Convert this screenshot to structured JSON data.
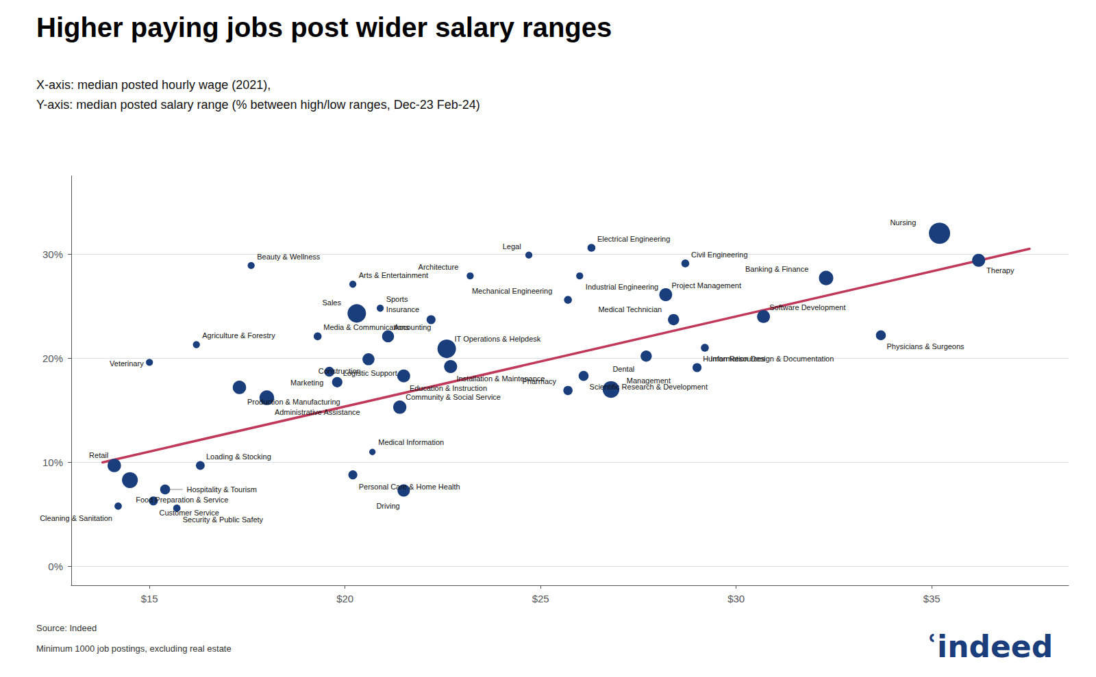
{
  "chart_data": {
    "type": "scatter",
    "title": "Higher paying jobs post wider salary ranges",
    "subtitle": "X-axis: median posted hourly wage (2021),\nY-axis: median posted salary range (% between high/low ranges, Dec-23 Feb-24)",
    "source": "Source: Indeed\nMinimum 1000 job postings, excluding real estate",
    "logo": "ʿindeed",
    "color": "#1a3d7c",
    "point_labels": [
      "Retail",
      "Food Preparation & Service",
      "Cleaning & Sanitation",
      "Customer Service",
      "Security & Public Safety",
      "Hospitality & Tourism",
      "Loading & Stocking",
      "Veterinary",
      "Agriculture & Forestry",
      "Production & Manufacturing",
      "Administrative Assistance",
      "Beauty & Wellness",
      "Media & Communications",
      "Marketing",
      "Logistic Support",
      "Arts & Entertainment",
      "Sales",
      "Sports",
      "Construction",
      "Accounting",
      "Education & Instruction",
      "Personal Care & Home Health",
      "Medical Information",
      "Community & Social Service",
      "Driving",
      "Insurance",
      "IT Operations & Helpdesk",
      "Installation & Maintenance",
      "Architecture",
      "Legal",
      "Mechanical Engineering",
      "Electrical Engineering",
      "Industrial Engineering",
      "Pharmacy",
      "Scientific Research & Development",
      "Management",
      "Civil Engineering",
      "Project Management",
      "Medical Technician",
      "Dental",
      "Information Design & Documentation",
      "Human Resources",
      "Software Development",
      "Banking & Finance",
      "Physicians & Surgeons",
      "Nursing",
      "Therapy"
    ],
    "x": [
      14.1,
      14.5,
      14.2,
      15.1,
      15.7,
      15.4,
      16.3,
      15.0,
      16.2,
      17.3,
      18.0,
      17.6,
      19.3,
      19.6,
      19.8,
      20.2,
      20.3,
      20.9,
      20.6,
      21.1,
      21.5,
      20.2,
      20.7,
      21.4,
      21.5,
      22.2,
      22.6,
      22.7,
      23.2,
      24.7,
      25.7,
      26.3,
      26.0,
      25.7,
      26.1,
      26.8,
      28.7,
      28.2,
      28.4,
      27.7,
      29.2,
      29.0,
      30.7,
      32.3,
      33.7,
      35.2,
      36.2
    ],
    "values": [
      0.097,
      0.083,
      0.058,
      0.063,
      0.056,
      0.074,
      0.097,
      0.196,
      0.213,
      0.172,
      0.162,
      0.289,
      0.221,
      0.187,
      0.177,
      0.271,
      0.243,
      0.248,
      0.199,
      0.221,
      0.183,
      0.088,
      0.11,
      0.153,
      0.073,
      0.237,
      0.209,
      0.192,
      0.279,
      0.299,
      0.256,
      0.306,
      0.279,
      0.169,
      0.183,
      0.17,
      0.291,
      0.261,
      0.237,
      0.202,
      0.21,
      0.191,
      0.24,
      0.277,
      0.222,
      0.32,
      0.294
    ],
    "sizes": [
      200,
      280,
      60,
      90,
      60,
      110,
      85,
      55,
      55,
      200,
      240,
      55,
      70,
      110,
      120,
      55,
      380,
      55,
      160,
      160,
      185,
      90,
      45,
      195,
      170,
      90,
      380,
      190,
      55,
      55,
      70,
      70,
      55,
      95,
      110,
      310,
      70,
      185,
      140,
      140,
      70,
      90,
      185,
      230,
      110,
      500,
      190
    ],
    "trendline": {
      "x": [
        13.8,
        37.5
      ],
      "values": [
        0.1,
        0.305
      ],
      "color": "#c0395a"
    },
    "xlim": [
      13.0,
      38.5
    ],
    "ylim": [
      -0.018,
      0.375
    ],
    "xticks": [
      {
        "value": 15,
        "label": "$15"
      },
      {
        "value": 20,
        "label": "$20"
      },
      {
        "value": 25,
        "label": "$25"
      },
      {
        "value": 30,
        "label": "$30"
      },
      {
        "value": 35,
        "label": "$35"
      }
    ],
    "yticks": [
      {
        "value": 0.0,
        "label": "0%"
      },
      {
        "value": 0.1,
        "label": "10%"
      },
      {
        "value": 0.2,
        "label": "20%"
      },
      {
        "value": 0.3,
        "label": "30%"
      }
    ],
    "grid": "y"
  }
}
